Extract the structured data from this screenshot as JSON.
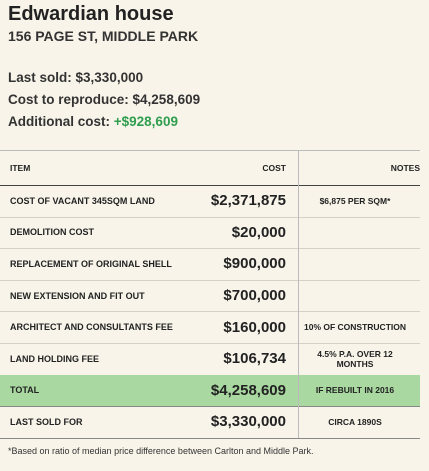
{
  "header": {
    "title": "Edwardian house",
    "subtitle": "156 PAGE ST, MIDDLE PARK"
  },
  "summary": [
    {
      "label": "Last sold:",
      "value": "$3,330,000"
    },
    {
      "label": "Cost to reproduce:",
      "value": "$4,258,609"
    },
    {
      "label": "Additional cost:",
      "value": "+$928,609",
      "color": "#2e9e4f"
    }
  ],
  "table": {
    "columns": [
      "ITEM",
      "COST",
      "NOTES"
    ],
    "rows": [
      [
        "COST OF VACANT 345SQM LAND",
        "$2,371,875",
        "$6,875 PER SQM*"
      ],
      [
        "DEMOLITION COST",
        "$20,000",
        null
      ],
      [
        "REPLACEMENT OF ORIGINAL SHELL",
        "$900,000",
        null
      ],
      [
        "NEW EXTENSION AND FIT OUT",
        "$700,000",
        null
      ],
      [
        "ARCHITECT AND CONSULTANTS FEE",
        "$160,000",
        "10% OF CONSTRUCTION"
      ],
      [
        "LAND HOLDING FEE",
        "$106,734",
        "4.5% P.A. OVER 12 MONTHS"
      ],
      [
        "TOTAL",
        "$4,258,609",
        "IF REBUILT IN 2016"
      ],
      [
        "LAST SOLD FOR",
        "$3,330,000",
        "CIRCA 1890S"
      ]
    ],
    "highlight_row": 6,
    "highlight_color": "#a9d8a1"
  },
  "footnote": "*Based on ratio of median price difference between Carlton and Middle Park."
}
